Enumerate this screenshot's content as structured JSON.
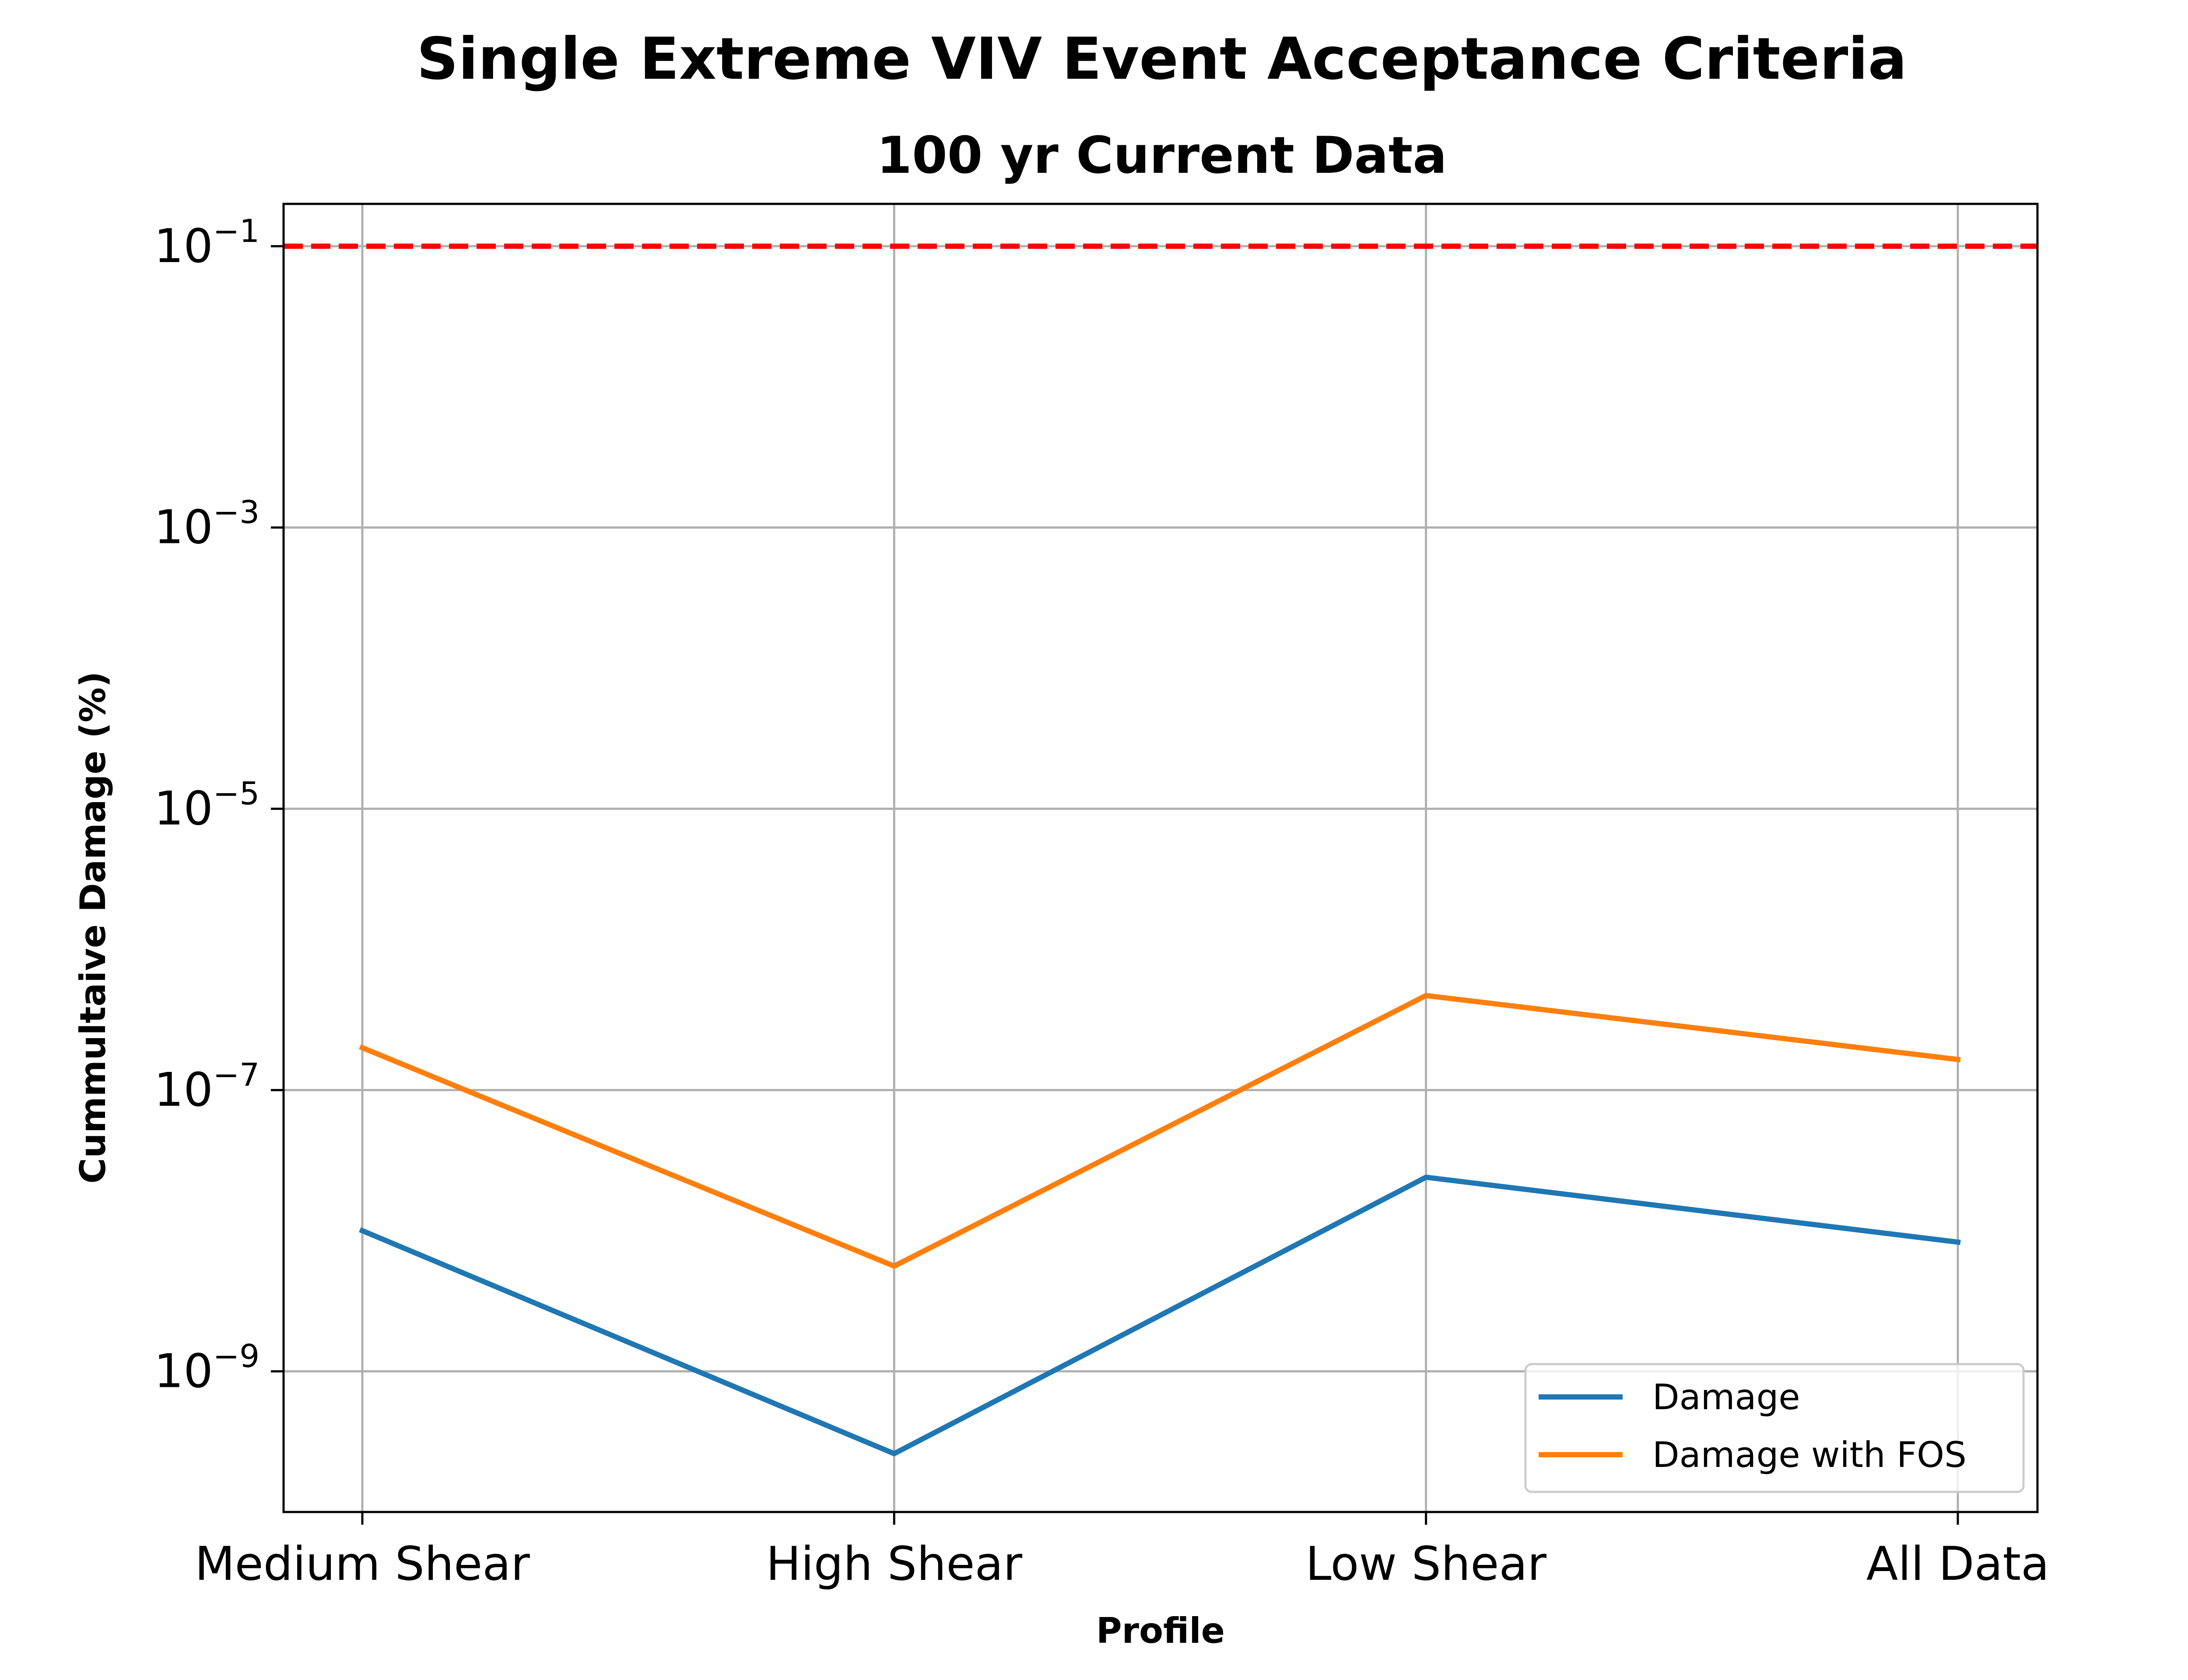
{
  "chart_data": {
    "type": "line",
    "title": "Single Extreme VIV Event Acceptance Criteria",
    "subtitle": "100 yr Current Data",
    "xlabel": "Profile",
    "ylabel": "Cummultaive Damage (%)",
    "yscale": "log",
    "ylim": [
      1e-10,
      0.2
    ],
    "yticks": [
      {
        "value": 0.1,
        "base": "10",
        "exp": "−1"
      },
      {
        "value": 0.001,
        "base": "10",
        "exp": "−3"
      },
      {
        "value": 1e-05,
        "base": "10",
        "exp": "−5"
      },
      {
        "value": 1e-07,
        "base": "10",
        "exp": "−7"
      },
      {
        "value": 1e-09,
        "base": "10",
        "exp": "−9"
      }
    ],
    "categories": [
      "Medium Shear",
      "High Shear",
      "Low Shear",
      "All Data"
    ],
    "series": [
      {
        "name": "Damage",
        "color": "#1f77b4",
        "values": [
          1e-08,
          2.6e-10,
          2.4e-08,
          8.3e-09
        ]
      },
      {
        "name": "Damage with FOS",
        "color": "#ff7f0e",
        "values": [
          2e-07,
          5.6e-09,
          4.7e-07,
          1.65e-07
        ]
      }
    ],
    "threshold": {
      "value": 0.1,
      "color": "#ff0000",
      "style": "dashed"
    },
    "grid": true,
    "legend_position": "lower-right"
  }
}
